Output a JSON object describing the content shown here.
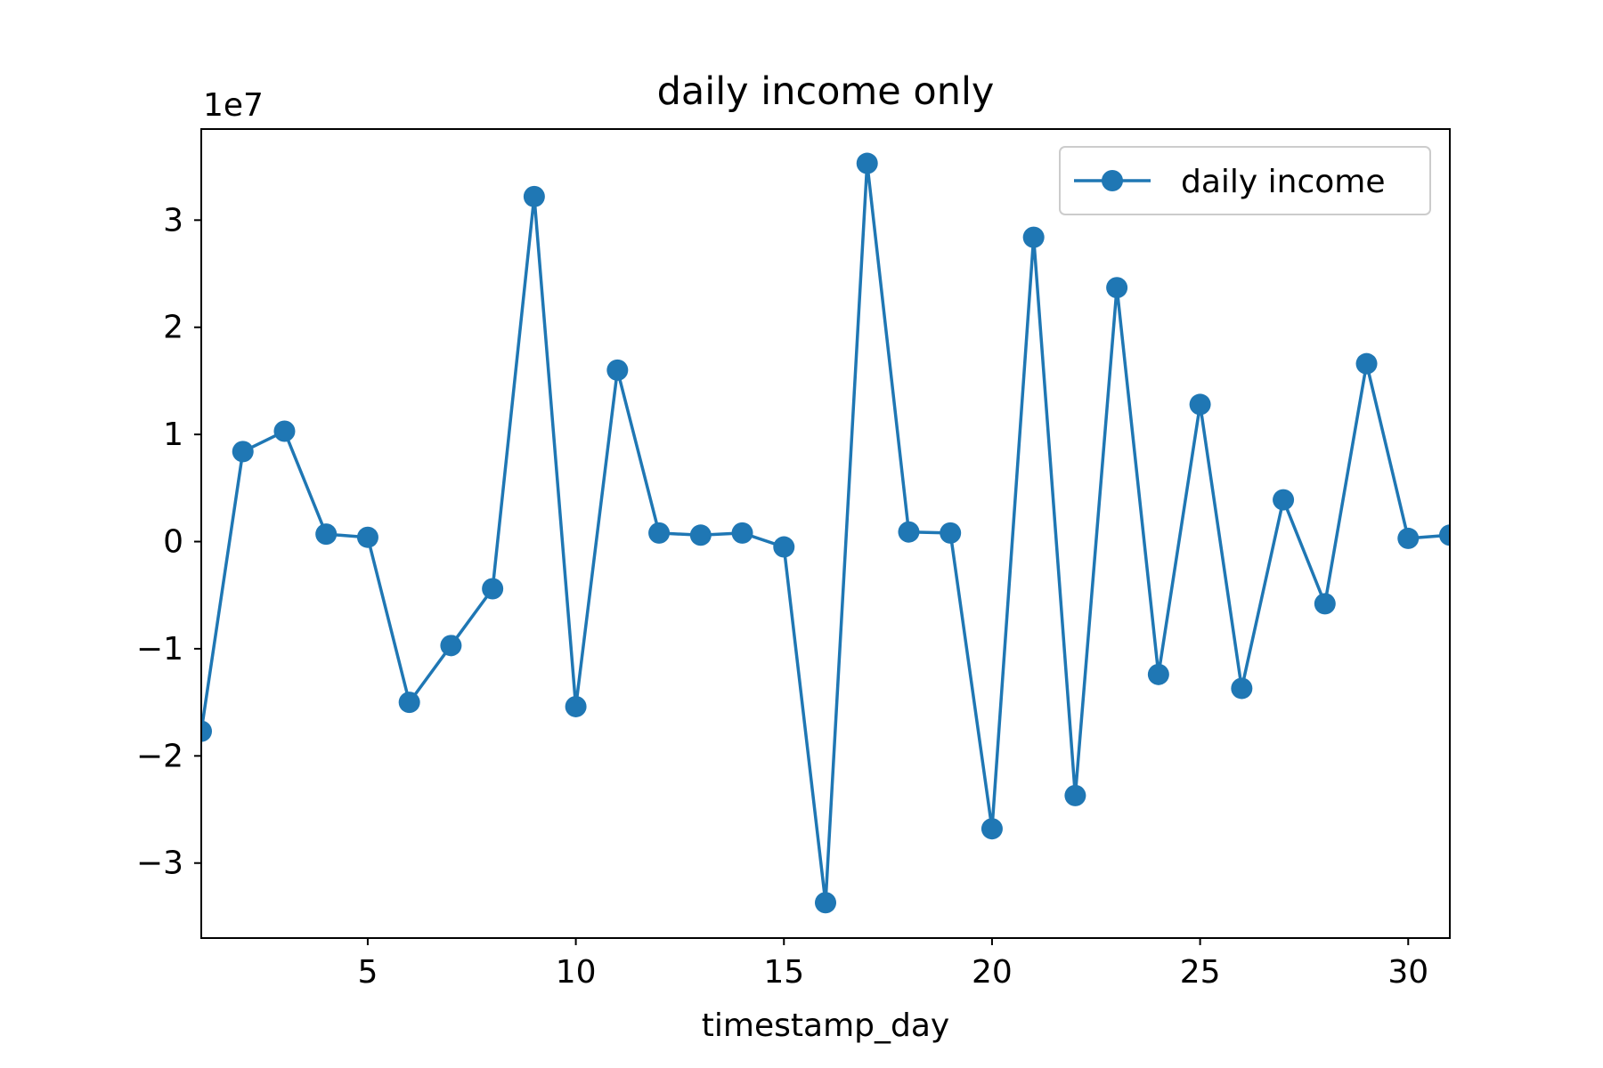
{
  "chart_data": {
    "type": "line",
    "title": "daily income only",
    "xlabel": "timestamp_day",
    "ylabel": "",
    "y_offset_label": "1e7",
    "xlim": [
      1,
      31
    ],
    "ylim": [
      -3.7,
      3.85
    ],
    "x_ticks": [
      5,
      10,
      15,
      20,
      25,
      30
    ],
    "y_ticks": [
      -3,
      -2,
      -1,
      0,
      1,
      2,
      3
    ],
    "y_tick_labels": [
      "−3",
      "−2",
      "−1",
      "0",
      "1",
      "2",
      "3"
    ],
    "grid": false,
    "legend": {
      "position": "top-right"
    },
    "series": [
      {
        "name": "daily income",
        "color": "#1f77b4",
        "marker": "circle",
        "x": [
          1,
          2,
          3,
          4,
          5,
          6,
          7,
          8,
          9,
          10,
          11,
          12,
          13,
          14,
          15,
          16,
          17,
          18,
          19,
          20,
          21,
          22,
          23,
          24,
          25,
          26,
          27,
          28,
          29,
          30,
          31
        ],
        "values": [
          -1.77,
          0.84,
          1.03,
          0.07,
          0.04,
          -1.5,
          -0.97,
          -0.44,
          3.22,
          -1.54,
          1.6,
          0.08,
          0.06,
          0.08,
          -0.05,
          -3.37,
          3.53,
          0.09,
          0.08,
          -2.68,
          2.84,
          -2.37,
          2.37,
          -1.24,
          1.28,
          -1.37,
          0.39,
          -0.58,
          1.66,
          0.03,
          0.06
        ]
      }
    ]
  }
}
